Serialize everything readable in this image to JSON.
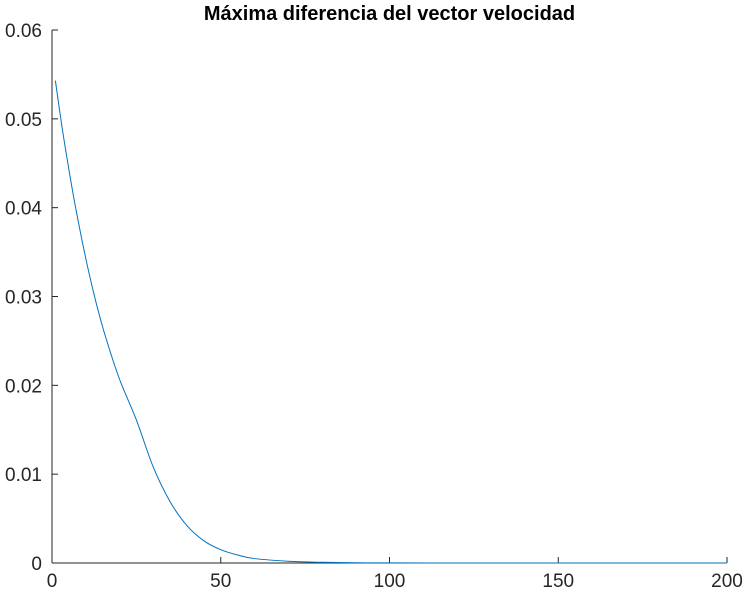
{
  "chart_data": {
    "type": "line",
    "title": "Máxima diferencia del vector velocidad",
    "xlabel": "",
    "ylabel": "",
    "xlim": [
      0,
      200
    ],
    "ylim": [
      0,
      0.06
    ],
    "xticks": [
      0,
      50,
      100,
      150,
      200
    ],
    "xtick_labels": [
      "0",
      "50",
      "100",
      "150",
      "200"
    ],
    "yticks": [
      0,
      0.01,
      0.02,
      0.03,
      0.04,
      0.05,
      0.06
    ],
    "ytick_labels": [
      "0",
      "0.01",
      "0.02",
      "0.03",
      "0.04",
      "0.05",
      "0.06"
    ],
    "grid": false,
    "series": [
      {
        "color": "#0072BD",
        "x": [
          1,
          3,
          5,
          7,
          10,
          13,
          16,
          20,
          25,
          30,
          35,
          40,
          45,
          50,
          55,
          60,
          70,
          80,
          90,
          100,
          120,
          140,
          160,
          180,
          200
        ],
        "y": [
          0.0543,
          0.049,
          0.0443,
          0.04,
          0.0343,
          0.0294,
          0.0253,
          0.0207,
          0.0161,
          0.0108,
          0.0069,
          0.0042,
          0.0025,
          0.0015,
          0.0009,
          0.0005,
          0.0002,
          8e-05,
          3e-05,
          1e-05,
          0.0,
          0.0,
          0.0,
          0.0,
          0.0
        ]
      }
    ]
  }
}
